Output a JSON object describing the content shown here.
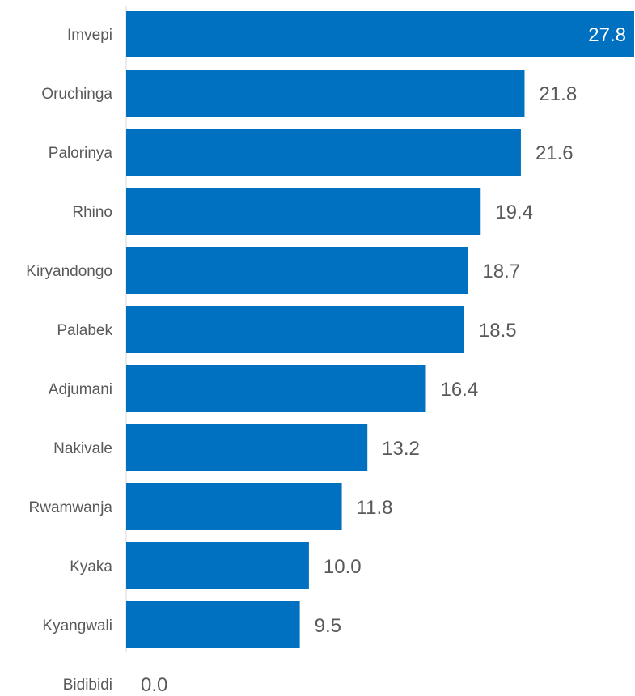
{
  "chart_data": {
    "type": "bar",
    "orientation": "horizontal",
    "categories": [
      "Imvepi",
      "Oruchinga",
      "Palorinya",
      "Rhino",
      "Kiryandongo",
      "Palabek",
      "Adjumani",
      "Nakivale",
      "Rwamwanja",
      "Kyaka",
      "Kyangwali",
      "Bidibidi"
    ],
    "values": [
      27.8,
      21.8,
      21.6,
      19.4,
      18.7,
      18.5,
      16.4,
      13.2,
      11.8,
      10.0,
      9.5,
      0.0
    ],
    "value_labels": [
      "27.8",
      "21.8",
      "21.6",
      "19.4",
      "18.7",
      "18.5",
      "16.4",
      "13.2",
      "11.8",
      "10.0",
      "9.5",
      "0.0"
    ],
    "title": "",
    "xlabel": "",
    "ylabel": "",
    "xlim": [
      0,
      27.8
    ],
    "grid": false,
    "legend": "none",
    "colors": {
      "bar": "#0070C0",
      "axis": "#d9d9d9",
      "category_text": "#595959",
      "value_text_outside": "#595959",
      "value_text_inside": "#ffffff"
    }
  }
}
